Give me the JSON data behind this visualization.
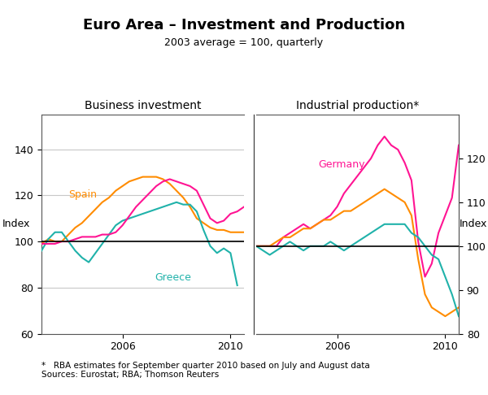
{
  "title": "Euro Area – Investment and Production",
  "subtitle": "2003 average = 100, quarterly",
  "ylabel_left": "Index",
  "ylabel_right": "Index",
  "panel1_title": "Business investment",
  "panel2_title": "Industrial production*",
  "footnote": "*   RBA estimates for September quarter 2010 based on July and August data\nSources: Eurostat; RBA; Thomson Reuters",
  "left_ylim": [
    60,
    155
  ],
  "right_ylim": [
    80,
    130
  ],
  "left_yticks": [
    60,
    80,
    100,
    120,
    140
  ],
  "right_yticks": [
    80,
    90,
    100,
    110,
    120
  ],
  "color_spain": "#FF8C00",
  "color_greece": "#20B2AA",
  "color_germany": "#FF1493",
  "color_hline": "#000000",
  "color_grid": "#C8C8C8",
  "bi_spain_x": [
    2003.0,
    2003.25,
    2003.5,
    2003.75,
    2004.0,
    2004.25,
    2004.5,
    2004.75,
    2005.0,
    2005.25,
    2005.5,
    2005.75,
    2006.0,
    2006.25,
    2006.5,
    2006.75,
    2007.0,
    2007.25,
    2007.5,
    2007.75,
    2008.0,
    2008.25,
    2008.5,
    2008.75,
    2009.0,
    2009.25,
    2009.5,
    2009.75,
    2010.0,
    2010.25,
    2010.5
  ],
  "bi_spain_y": [
    99,
    101,
    100,
    100,
    103,
    106,
    108,
    111,
    114,
    117,
    119,
    122,
    124,
    126,
    127,
    128,
    128,
    128,
    127,
    125,
    122,
    119,
    115,
    110,
    108,
    106,
    105,
    105,
    104,
    104,
    104
  ],
  "bi_greece_x": [
    2003.0,
    2003.25,
    2003.5,
    2003.75,
    2004.0,
    2004.25,
    2004.5,
    2004.75,
    2005.0,
    2005.25,
    2005.5,
    2005.75,
    2006.0,
    2006.25,
    2006.5,
    2006.75,
    2007.0,
    2007.25,
    2007.5,
    2007.75,
    2008.0,
    2008.25,
    2008.5,
    2008.75,
    2009.0,
    2009.25,
    2009.5,
    2009.75,
    2010.0,
    2010.25
  ],
  "bi_greece_y": [
    96,
    101,
    104,
    104,
    100,
    96,
    93,
    91,
    95,
    99,
    103,
    107,
    109,
    110,
    111,
    112,
    113,
    114,
    115,
    116,
    117,
    116,
    116,
    113,
    105,
    98,
    95,
    97,
    95,
    81
  ],
  "bi_germany_x": [
    2003.0,
    2003.25,
    2003.5,
    2003.75,
    2004.0,
    2004.25,
    2004.5,
    2004.75,
    2005.0,
    2005.25,
    2005.5,
    2005.75,
    2006.0,
    2006.25,
    2006.5,
    2006.75,
    2007.0,
    2007.25,
    2007.5,
    2007.75,
    2008.0,
    2008.25,
    2008.5,
    2008.75,
    2009.0,
    2009.25,
    2009.5,
    2009.75,
    2010.0,
    2010.25,
    2010.5
  ],
  "bi_germany_y": [
    99,
    99,
    99,
    100,
    100,
    101,
    102,
    102,
    102,
    103,
    103,
    104,
    107,
    111,
    115,
    118,
    121,
    124,
    126,
    127,
    126,
    125,
    124,
    122,
    116,
    110,
    108,
    109,
    112,
    113,
    115
  ],
  "ip_germany_x": [
    2003.0,
    2003.25,
    2003.5,
    2003.75,
    2004.0,
    2004.25,
    2004.5,
    2004.75,
    2005.0,
    2005.25,
    2005.5,
    2005.75,
    2006.0,
    2006.25,
    2006.5,
    2006.75,
    2007.0,
    2007.25,
    2007.5,
    2007.75,
    2008.0,
    2008.25,
    2008.5,
    2008.75,
    2009.0,
    2009.25,
    2009.5,
    2009.75,
    2010.0,
    2010.25,
    2010.5
  ],
  "ip_germany_y": [
    100,
    100,
    100,
    100,
    102,
    103,
    104,
    105,
    104,
    105,
    106,
    107,
    109,
    112,
    114,
    116,
    118,
    120,
    123,
    125,
    123,
    122,
    119,
    115,
    101,
    93,
    96,
    103,
    107,
    111,
    123
  ],
  "ip_spain_x": [
    2003.0,
    2003.25,
    2003.5,
    2003.75,
    2004.0,
    2004.25,
    2004.5,
    2004.75,
    2005.0,
    2005.25,
    2005.5,
    2005.75,
    2006.0,
    2006.25,
    2006.5,
    2006.75,
    2007.0,
    2007.25,
    2007.5,
    2007.75,
    2008.0,
    2008.25,
    2008.5,
    2008.75,
    2009.0,
    2009.25,
    2009.5,
    2009.75,
    2010.0,
    2010.25,
    2010.5
  ],
  "ip_spain_y": [
    100,
    100,
    100,
    101,
    102,
    102,
    103,
    104,
    104,
    105,
    106,
    106,
    107,
    108,
    108,
    109,
    110,
    111,
    112,
    113,
    112,
    111,
    110,
    107,
    97,
    89,
    86,
    85,
    84,
    85,
    86
  ],
  "ip_greece_x": [
    2003.0,
    2003.25,
    2003.5,
    2003.75,
    2004.0,
    2004.25,
    2004.5,
    2004.75,
    2005.0,
    2005.25,
    2005.5,
    2005.75,
    2006.0,
    2006.25,
    2006.5,
    2006.75,
    2007.0,
    2007.25,
    2007.5,
    2007.75,
    2008.0,
    2008.25,
    2008.5,
    2008.75,
    2009.0,
    2009.25,
    2009.5,
    2009.75,
    2010.0,
    2010.25,
    2010.5
  ],
  "ip_greece_y": [
    100,
    99,
    98,
    99,
    100,
    101,
    100,
    99,
    100,
    100,
    100,
    101,
    100,
    99,
    100,
    101,
    102,
    103,
    104,
    105,
    105,
    105,
    105,
    103,
    102,
    100,
    98,
    97,
    93,
    89,
    84
  ]
}
